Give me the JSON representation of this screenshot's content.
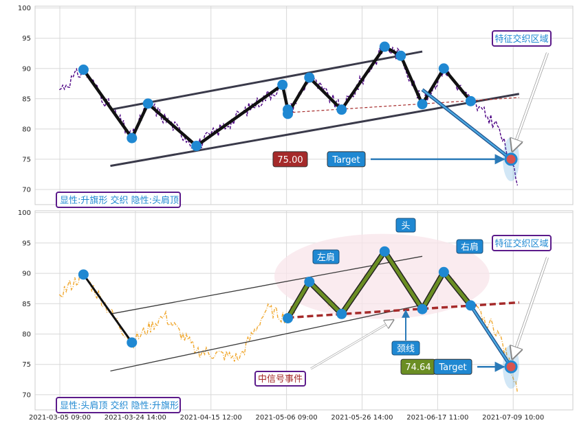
{
  "chart_data": [
    {
      "type": "line",
      "panel": "top",
      "ylim": [
        67.5,
        100.3
      ],
      "yticks": [
        70,
        75,
        80,
        85,
        90,
        95,
        100
      ],
      "grid": true,
      "legend_box": "显性:升旗形 交织 隐性:头肩顶",
      "zone_label": "特征交织区域",
      "price_label": "75.00",
      "target_label": "Target",
      "colors": {
        "price": "#4b0082",
        "pattern": "#111111",
        "channel": "#3a3a4a",
        "neckline": "#a52a2a",
        "marker": "#1f88d2",
        "target_arrow": "#2a7ab8",
        "price_box": "#a52a2a",
        "target_box": "#1f88d2"
      },
      "pivots": [
        {
          "x": 0.09,
          "y": 89.8
        },
        {
          "x": 0.18,
          "y": 78.5
        },
        {
          "x": 0.21,
          "y": 84.2
        },
        {
          "x": 0.3,
          "y": 77.2
        },
        {
          "x": 0.46,
          "y": 87.3
        },
        {
          "x": 0.47,
          "y": 83.2
        },
        {
          "x": 0.47,
          "y": 82.5
        },
        {
          "x": 0.51,
          "y": 88.5
        },
        {
          "x": 0.57,
          "y": 83.2
        },
        {
          "x": 0.65,
          "y": 93.6
        },
        {
          "x": 0.68,
          "y": 92.1
        },
        {
          "x": 0.72,
          "y": 84.1
        },
        {
          "x": 0.76,
          "y": 90.0
        },
        {
          "x": 0.81,
          "y": 84.6
        }
      ],
      "target_point": {
        "x": 0.885,
        "y": 75.0
      },
      "channel_upper": [
        {
          "x": 0.14,
          "y": 83.2
        },
        {
          "x": 0.72,
          "y": 92.8
        }
      ],
      "channel_lower": [
        {
          "x": 0.14,
          "y": 73.9
        },
        {
          "x": 0.9,
          "y": 85.8
        }
      ],
      "neckline": [
        {
          "x": 0.47,
          "y": 82.7
        },
        {
          "x": 0.9,
          "y": 85.2
        }
      ]
    },
    {
      "type": "line",
      "panel": "bottom",
      "ylim": [
        67.5,
        100.3
      ],
      "yticks": [
        70,
        75,
        80,
        85,
        90,
        95,
        100
      ],
      "grid": true,
      "legend_box": "显性:头肩顶 交织 隐性:升旗形",
      "zone_label": "特征交织区域",
      "price_label": "74.64",
      "target_label": "Target",
      "event_label": "中信号事件",
      "neckline_label": "颈线",
      "left_shoulder_label": "左肩",
      "head_label": "头",
      "right_shoulder_label": "右肩",
      "colors": {
        "price": "#f0a830",
        "pattern": "#6b8e23",
        "flag": "#111111",
        "channel": "#3a3a3a",
        "neckline": "#a52a2a",
        "marker": "#1f88d2",
        "zone": "#f8e4ea",
        "price_box": "#6b8e23",
        "target_box": "#1f88d2"
      },
      "flag_pivots": [
        {
          "x": 0.09,
          "y": 89.8
        },
        {
          "x": 0.18,
          "y": 78.6
        }
      ],
      "hs_pivots": [
        {
          "x": 0.47,
          "y": 82.6
        },
        {
          "x": 0.51,
          "y": 88.6
        },
        {
          "x": 0.57,
          "y": 83.3
        },
        {
          "x": 0.65,
          "y": 93.6
        },
        {
          "x": 0.72,
          "y": 84.1
        },
        {
          "x": 0.76,
          "y": 90.2
        },
        {
          "x": 0.81,
          "y": 84.7
        }
      ],
      "target_point": {
        "x": 0.885,
        "y": 74.6
      },
      "channel_upper": [
        {
          "x": 0.14,
          "y": 83.3
        },
        {
          "x": 0.72,
          "y": 92.8
        }
      ],
      "channel_lower": [
        {
          "x": 0.14,
          "y": 73.9
        },
        {
          "x": 0.72,
          "y": 84.8
        }
      ],
      "neckline": [
        {
          "x": 0.47,
          "y": 82.7
        },
        {
          "x": 0.9,
          "y": 85.2
        }
      ]
    }
  ],
  "x_axis": {
    "tick_labels": [
      "2021-03-05 09:00",
      "2021-03-24 14:00",
      "2021-04-15 12:00",
      "2021-05-06 09:00",
      "2021-05-26 14:00",
      "2021-06-17 11:00",
      "2021-07-09 10:00"
    ]
  }
}
